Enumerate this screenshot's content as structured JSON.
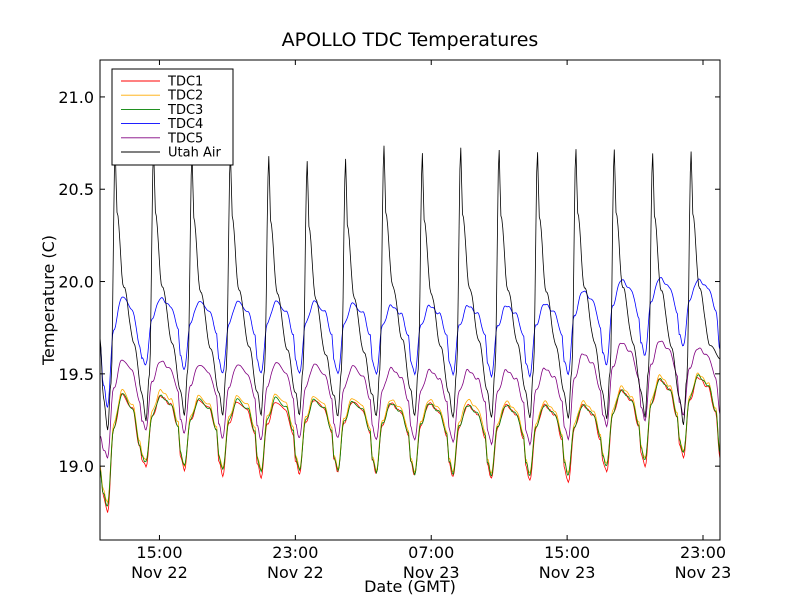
{
  "chart_data": {
    "type": "line",
    "title": "APOLLO TDC Temperatures",
    "xlabel": "Date (GMT)",
    "ylabel": "Temperature (C)",
    "xlim": [
      0,
      36.5
    ],
    "ylim": [
      18.6,
      21.2
    ],
    "x_unit": "hours since Nov 22 11:30 GMT",
    "yticks": [
      19.0,
      19.5,
      20.0,
      20.5,
      21.0
    ],
    "ytick_labels": [
      "19.0",
      "19.5",
      "20.0",
      "20.5",
      "21.0"
    ],
    "xticks": [
      {
        "x": 3.5,
        "time": "15:00",
        "date": "Nov 22"
      },
      {
        "x": 11.5,
        "time": "23:00",
        "date": "Nov 22"
      },
      {
        "x": 19.5,
        "time": "07:00",
        "date": "Nov 23"
      },
      {
        "x": 27.5,
        "time": "15:00",
        "date": "Nov 23"
      },
      {
        "x": 35.5,
        "time": "23:00",
        "date": "Nov 23"
      }
    ],
    "legend_position": "top-left",
    "cycle_period_hours": 2.26,
    "series": [
      {
        "name": "TDC1",
        "color": "#ff0000",
        "start": 19.0,
        "cycles": [
          {
            "min": 18.75,
            "max": 19.39
          },
          {
            "min": 19.0,
            "max": 19.38
          },
          {
            "min": 18.98,
            "max": 19.36
          },
          {
            "min": 18.95,
            "max": 19.35
          },
          {
            "min": 18.94,
            "max": 19.35
          },
          {
            "min": 18.96,
            "max": 19.36
          },
          {
            "min": 18.97,
            "max": 19.35
          },
          {
            "min": 18.96,
            "max": 19.34
          },
          {
            "min": 18.95,
            "max": 19.34
          },
          {
            "min": 18.94,
            "max": 19.33
          },
          {
            "min": 18.93,
            "max": 19.33
          },
          {
            "min": 18.92,
            "max": 19.33
          },
          {
            "min": 18.91,
            "max": 19.33
          },
          {
            "min": 18.97,
            "max": 19.41
          },
          {
            "min": 19.0,
            "max": 19.47
          },
          {
            "min": 19.05,
            "max": 19.48
          }
        ],
        "end": 19.04
      },
      {
        "name": "TDC2",
        "color": "#ffaa00",
        "start": 19.0,
        "cycles": [
          {
            "min": 18.8,
            "max": 19.41
          },
          {
            "min": 19.03,
            "max": 19.41
          },
          {
            "min": 19.0,
            "max": 19.38
          },
          {
            "min": 18.99,
            "max": 19.38
          },
          {
            "min": 18.98,
            "max": 19.39
          },
          {
            "min": 18.99,
            "max": 19.38
          },
          {
            "min": 18.99,
            "max": 19.37
          },
          {
            "min": 18.98,
            "max": 19.36
          },
          {
            "min": 18.97,
            "max": 19.36
          },
          {
            "min": 18.97,
            "max": 19.36
          },
          {
            "min": 18.96,
            "max": 19.35
          },
          {
            "min": 18.96,
            "max": 19.35
          },
          {
            "min": 18.96,
            "max": 19.35
          },
          {
            "min": 19.01,
            "max": 19.43
          },
          {
            "min": 19.04,
            "max": 19.49
          },
          {
            "min": 19.08,
            "max": 19.5
          }
        ],
        "end": 19.08
      },
      {
        "name": "TDC3",
        "color": "#008000",
        "start": 18.98,
        "cycles": [
          {
            "min": 18.78,
            "max": 19.39
          },
          {
            "min": 19.02,
            "max": 19.38
          },
          {
            "min": 19.0,
            "max": 19.36
          },
          {
            "min": 18.98,
            "max": 19.36
          },
          {
            "min": 18.97,
            "max": 19.37
          },
          {
            "min": 18.98,
            "max": 19.36
          },
          {
            "min": 18.98,
            "max": 19.35
          },
          {
            "min": 18.97,
            "max": 19.34
          },
          {
            "min": 18.96,
            "max": 19.34
          },
          {
            "min": 18.96,
            "max": 19.33
          },
          {
            "min": 18.95,
            "max": 19.33
          },
          {
            "min": 18.95,
            "max": 19.33
          },
          {
            "min": 18.95,
            "max": 19.33
          },
          {
            "min": 19.0,
            "max": 19.41
          },
          {
            "min": 19.03,
            "max": 19.47
          },
          {
            "min": 19.07,
            "max": 19.49
          }
        ],
        "end": 19.07
      },
      {
        "name": "TDC4",
        "color": "#0000ff",
        "start": 19.67,
        "cycles": [
          {
            "min": 19.32,
            "max": 19.92
          },
          {
            "min": 19.55,
            "max": 19.91
          },
          {
            "min": 19.52,
            "max": 19.89
          },
          {
            "min": 19.5,
            "max": 19.89
          },
          {
            "min": 19.5,
            "max": 19.89
          },
          {
            "min": 19.5,
            "max": 19.89
          },
          {
            "min": 19.5,
            "max": 19.88
          },
          {
            "min": 19.5,
            "max": 19.87
          },
          {
            "min": 19.5,
            "max": 19.87
          },
          {
            "min": 19.5,
            "max": 19.87
          },
          {
            "min": 19.49,
            "max": 19.87
          },
          {
            "min": 19.49,
            "max": 19.88
          },
          {
            "min": 19.5,
            "max": 19.95
          },
          {
            "min": 19.55,
            "max": 20.01
          },
          {
            "min": 19.6,
            "max": 20.02
          },
          {
            "min": 19.65,
            "max": 20.01
          }
        ],
        "end": 19.63
      },
      {
        "name": "TDC5",
        "color": "#800080",
        "start": 19.17,
        "cycles": [
          {
            "min": 19.05,
            "max": 19.58
          },
          {
            "min": 19.2,
            "max": 19.57
          },
          {
            "min": 19.18,
            "max": 19.55
          },
          {
            "min": 19.15,
            "max": 19.55
          },
          {
            "min": 19.14,
            "max": 19.56
          },
          {
            "min": 19.15,
            "max": 19.55
          },
          {
            "min": 19.15,
            "max": 19.54
          },
          {
            "min": 19.14,
            "max": 19.53
          },
          {
            "min": 19.14,
            "max": 19.52
          },
          {
            "min": 19.13,
            "max": 19.52
          },
          {
            "min": 19.12,
            "max": 19.52
          },
          {
            "min": 19.12,
            "max": 19.53
          },
          {
            "min": 19.15,
            "max": 19.61
          },
          {
            "min": 19.22,
            "max": 19.67
          },
          {
            "min": 19.25,
            "max": 19.68
          },
          {
            "min": 19.28,
            "max": 19.64
          }
        ],
        "end": 19.28
      },
      {
        "name": "Utah Air",
        "color": "#000000",
        "start": 19.7,
        "cycles": [
          {
            "min": 19.2,
            "max": 20.72
          },
          {
            "min": 19.25,
            "max": 20.72
          },
          {
            "min": 19.28,
            "max": 20.69
          },
          {
            "min": 19.28,
            "max": 20.7
          },
          {
            "min": 19.28,
            "max": 20.68
          },
          {
            "min": 19.28,
            "max": 20.65
          },
          {
            "min": 19.27,
            "max": 20.66
          },
          {
            "min": 19.27,
            "max": 20.73
          },
          {
            "min": 19.27,
            "max": 20.69
          },
          {
            "min": 19.26,
            "max": 20.72
          },
          {
            "min": 19.26,
            "max": 20.71
          },
          {
            "min": 19.26,
            "max": 20.7
          },
          {
            "min": 19.26,
            "max": 20.72
          },
          {
            "min": 19.26,
            "max": 20.72
          },
          {
            "min": 19.27,
            "max": 20.7
          },
          {
            "min": 19.23,
            "max": 20.71
          }
        ],
        "end": 19.58
      }
    ]
  }
}
